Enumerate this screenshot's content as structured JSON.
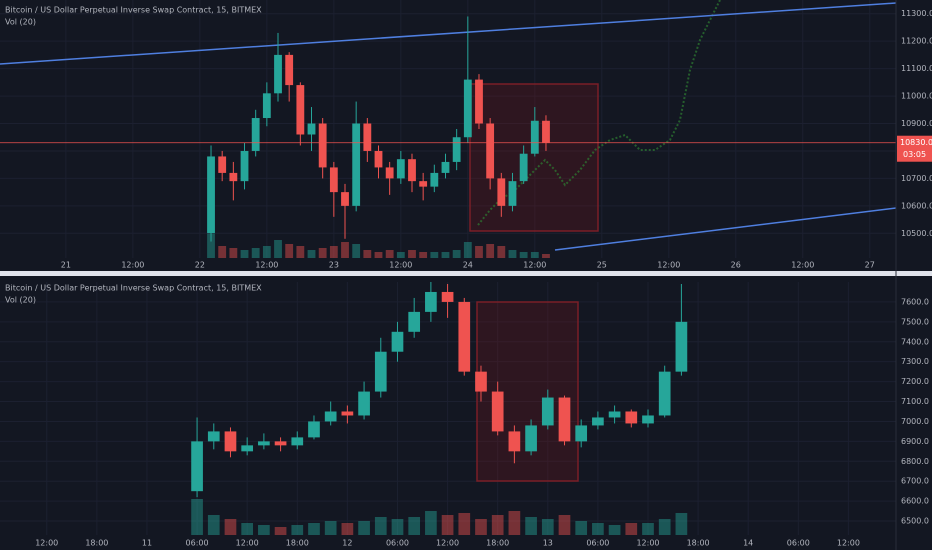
{
  "chart_data": [
    {
      "type": "candlestick",
      "title": "Bitcoin / US Dollar Perpetual Inverse Swap Contract, 15, BITMEX",
      "indicator": "Vol (20)",
      "x": [
        26,
        28,
        30,
        32,
        34,
        36,
        38,
        40,
        42,
        44,
        46,
        48,
        50,
        52,
        54,
        56,
        58,
        60,
        62,
        64,
        66,
        68,
        70,
        72,
        74,
        76,
        78,
        80,
        82,
        84,
        86
      ],
      "open": [
        10500,
        10780,
        10720,
        10690,
        10800,
        10920,
        11010,
        11150,
        11040,
        10860,
        10900,
        10740,
        10650,
        10600,
        10900,
        10800,
        10740,
        10700,
        10770,
        10690,
        10670,
        10720,
        10760,
        10850,
        11060,
        10900,
        10700,
        10600,
        10690,
        10790,
        10910
      ],
      "high": [
        10820,
        10800,
        10760,
        10830,
        10950,
        11050,
        11230,
        11160,
        11050,
        10960,
        10920,
        10760,
        10680,
        10980,
        10920,
        10820,
        10760,
        10800,
        10790,
        10720,
        10750,
        10790,
        10880,
        11290,
        11080,
        10920,
        10720,
        10720,
        10820,
        10960,
        10930
      ],
      "low": [
        10470,
        10690,
        10620,
        10660,
        10780,
        10890,
        10980,
        10980,
        10820,
        10800,
        10700,
        10560,
        10480,
        10580,
        10760,
        10700,
        10640,
        10680,
        10650,
        10620,
        10650,
        10700,
        10730,
        10830,
        10880,
        10660,
        10560,
        10580,
        10680,
        10780,
        10800
      ],
      "close": [
        10780,
        10720,
        10690,
        10800,
        10920,
        11010,
        11150,
        11040,
        10860,
        10900,
        10740,
        10650,
        10600,
        10900,
        10800,
        10740,
        10700,
        10770,
        10690,
        10670,
        10720,
        10760,
        10850,
        11060,
        10900,
        10700,
        10600,
        10690,
        10790,
        10910,
        10830
      ],
      "volume": [
        60,
        30,
        25,
        20,
        25,
        30,
        45,
        35,
        30,
        20,
        25,
        30,
        40,
        35,
        20,
        15,
        20,
        15,
        20,
        15,
        15,
        15,
        20,
        40,
        30,
        35,
        30,
        20,
        15,
        15,
        10
      ],
      "up_color": "#26a69a",
      "down_color": "#ef5350",
      "xlim": [
        -11.8,
        148.7
      ],
      "xticks": [
        {
          "value": 0,
          "label": "21"
        },
        {
          "value": 12,
          "label": "12:00"
        },
        {
          "value": 24,
          "label": "22"
        },
        {
          "value": 36,
          "label": "12:00"
        },
        {
          "value": 48,
          "label": "23"
        },
        {
          "value": 60,
          "label": "12:00"
        },
        {
          "value": 72,
          "label": "24"
        },
        {
          "value": 84,
          "label": "12:00"
        },
        {
          "value": 96,
          "label": "25"
        },
        {
          "value": 108,
          "label": "12:00"
        },
        {
          "value": 120,
          "label": "26"
        },
        {
          "value": 132,
          "label": "12:00"
        },
        {
          "value": 144,
          "label": "27"
        }
      ],
      "ylim": [
        10410,
        11350
      ],
      "yticks": [
        {
          "value": 10500,
          "label": "10500.0"
        },
        {
          "value": 10600,
          "label": "10600.0"
        },
        {
          "value": 10700,
          "label": "10700.0"
        },
        {
          "value": 10800,
          "label": "10800.0"
        },
        {
          "value": 10900,
          "label": "10900.0"
        },
        {
          "value": 11000,
          "label": "11000.0"
        },
        {
          "value": 11100,
          "label": "11100.0"
        },
        {
          "value": 11200,
          "label": "11200.0"
        },
        {
          "value": 11300,
          "label": "11300.0"
        }
      ],
      "last_price": {
        "value": 10830,
        "label": "10830.0"
      },
      "countdown": "03:05"
    },
    {
      "type": "candlestick",
      "title": "Bitcoin / US Dollar Perpetual Inverse Swap Contract, 15, BITMEX",
      "indicator": "Vol (20)",
      "x": [
        6,
        8,
        10,
        12,
        14,
        16,
        18,
        20,
        22,
        24,
        26,
        28,
        30,
        32,
        34,
        36,
        38,
        40,
        42,
        44,
        46,
        48,
        50,
        52,
        54,
        56,
        58,
        60,
        62,
        64
      ],
      "open": [
        6650,
        6900,
        6950,
        6850,
        6880,
        6900,
        6880,
        6920,
        7000,
        7050,
        7030,
        7150,
        7350,
        7450,
        7550,
        7650,
        7600,
        7250,
        7150,
        6950,
        6850,
        6980,
        7120,
        6900,
        6980,
        7020,
        7050,
        6990,
        7030,
        7250
      ],
      "high": [
        7020,
        6990,
        6970,
        6920,
        6940,
        6920,
        6950,
        7030,
        7100,
        7080,
        7200,
        7420,
        7500,
        7620,
        7700,
        7690,
        7620,
        7280,
        7200,
        6980,
        7010,
        7160,
        7130,
        7010,
        7050,
        7080,
        7060,
        7060,
        7280,
        7690
      ],
      "low": [
        6620,
        6860,
        6820,
        6830,
        6860,
        6850,
        6860,
        6910,
        6980,
        6990,
        7010,
        7120,
        7300,
        7420,
        7500,
        7520,
        7230,
        7100,
        6930,
        6790,
        6830,
        6960,
        6880,
        6870,
        6960,
        6990,
        6970,
        6970,
        7020,
        7230
      ],
      "close": [
        6900,
        6950,
        6850,
        6880,
        6900,
        6880,
        6920,
        7000,
        7050,
        7030,
        7150,
        7350,
        7450,
        7550,
        7650,
        7600,
        7250,
        7150,
        6950,
        6850,
        6980,
        7120,
        6900,
        6980,
        7020,
        7050,
        6990,
        7030,
        7250,
        7500
      ],
      "volume": [
        90,
        50,
        40,
        30,
        25,
        20,
        25,
        30,
        35,
        30,
        35,
        45,
        40,
        45,
        60,
        50,
        55,
        40,
        50,
        60,
        45,
        40,
        50,
        35,
        30,
        25,
        30,
        30,
        40,
        55
      ],
      "up_color": "#26a69a",
      "down_color": "#ef5350",
      "xlim": [
        -17.6,
        89.7
      ],
      "xticks": [
        {
          "value": -12,
          "label": "12:00"
        },
        {
          "value": -6,
          "label": "18:00"
        },
        {
          "value": 0,
          "label": "11"
        },
        {
          "value": 6,
          "label": "06:00"
        },
        {
          "value": 12,
          "label": "12:00"
        },
        {
          "value": 18,
          "label": "18:00"
        },
        {
          "value": 24,
          "label": "12"
        },
        {
          "value": 30,
          "label": "06:00"
        },
        {
          "value": 36,
          "label": "12:00"
        },
        {
          "value": 42,
          "label": "18:00"
        },
        {
          "value": 48,
          "label": "13"
        },
        {
          "value": 54,
          "label": "06:00"
        },
        {
          "value": 60,
          "label": "12:00"
        },
        {
          "value": 66,
          "label": "18:00"
        },
        {
          "value": 72,
          "label": "14"
        },
        {
          "value": 78,
          "label": "06:00"
        },
        {
          "value": 84,
          "label": "12:00"
        }
      ],
      "ylim": [
        6430,
        7700
      ],
      "yticks": [
        {
          "value": 6500,
          "label": "6500.0"
        },
        {
          "value": 6600,
          "label": "6600.0"
        },
        {
          "value": 6700,
          "label": "6700.0"
        },
        {
          "value": 6800,
          "label": "6800.0"
        },
        {
          "value": 6900,
          "label": "6900.0"
        },
        {
          "value": 7000,
          "label": "7000.0"
        },
        {
          "value": 7100,
          "label": "7100.0"
        },
        {
          "value": 7200,
          "label": "7200.0"
        },
        {
          "value": 7300,
          "label": "7300.0"
        },
        {
          "value": 7400,
          "label": "7400.0"
        },
        {
          "value": 7500,
          "label": "7500.0"
        },
        {
          "value": 7600,
          "label": "7600.0"
        }
      ]
    }
  ]
}
